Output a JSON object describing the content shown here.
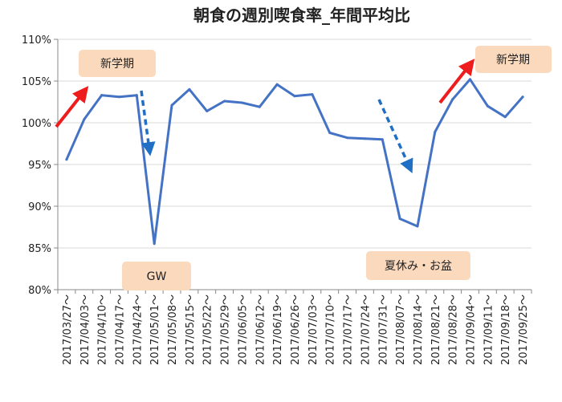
{
  "chart_data": {
    "type": "line",
    "title": "朝食の週別喫食率_年間平均比",
    "xlabel": "",
    "ylabel": "",
    "ylim": [
      80,
      110
    ],
    "yticks": [
      "80%",
      "85%",
      "90%",
      "95%",
      "100%",
      "105%",
      "110%"
    ],
    "ytick_values": [
      80,
      85,
      90,
      95,
      100,
      105,
      110
    ],
    "grid": true,
    "categories": [
      "2017/03/27～",
      "2017/04/03～",
      "2017/04/10～",
      "2017/04/17～",
      "2017/04/24～",
      "2017/05/01～",
      "2017/05/08～",
      "2017/05/15～",
      "2017/05/22～",
      "2017/05/29～",
      "2017/06/05～",
      "2017/06/12～",
      "2017/06/19～",
      "2017/06/26～",
      "2017/07/03～",
      "2017/07/10～",
      "2017/07/17～",
      "2017/07/24～",
      "2017/07/31～",
      "2017/08/07～",
      "2017/08/14～",
      "2017/08/21～",
      "2017/08/28～",
      "2017/09/04～",
      "2017/09/11～",
      "2017/09/18～",
      "2017/09/25～"
    ],
    "visible_tick_labels": [
      "2017/03/27～",
      "2017/04/03～",
      "2017/04/10～",
      "2017/04/17～",
      "2017/04/24～",
      "2017/05/01～",
      "2017/05/08～",
      "2017/05/15～",
      "2017/05/22～",
      "2017/05/29～",
      "2017/06/05～",
      "2017/06/12～",
      "2017/06/19～",
      "2017/06/26～",
      "2017/07/03～",
      "2017/07/10～",
      "2017/07/17～",
      "2017/07/24～",
      "2017/07/31～",
      "2017/08/07～",
      "2017/08/14～",
      "2017/08/21～",
      "2017/08/28～",
      "2017/09/04～",
      "2017/09/11～",
      "2017/09/18～",
      "2017/09/25～"
    ],
    "series": [
      {
        "name": "",
        "color": "#4472c4",
        "values": [
          95.6,
          100.4,
          103.3,
          103.1,
          103.3,
          85.5,
          102.1,
          104.0,
          101.4,
          102.6,
          102.4,
          101.9,
          104.6,
          103.2,
          103.4,
          98.8,
          98.2,
          98.1,
          98.0,
          88.5,
          87.6,
          98.9,
          102.8,
          105.2,
          102.0,
          100.7,
          103.1
        ]
      }
    ],
    "annotations": [
      {
        "key": "new_term_spring",
        "text": "新学期",
        "color": "#fad9bd"
      },
      {
        "key": "gw",
        "text": "GW",
        "color": "#fad9bd"
      },
      {
        "key": "summer",
        "text": "夏休み・お盆",
        "color": "#fad9bd"
      },
      {
        "key": "new_term_autumn",
        "text": "新学期",
        "color": "#fad9bd"
      }
    ],
    "arrow_colors": {
      "up": "#ee1c1c",
      "down": "#1f6fc4"
    }
  }
}
